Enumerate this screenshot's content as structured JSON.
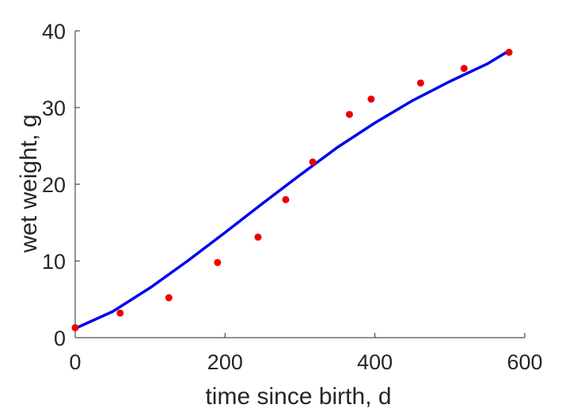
{
  "chart_data": {
    "type": "scatter",
    "title": "",
    "xlabel": "time since birth, d",
    "ylabel": "wet weight, g",
    "xlim": [
      0,
      600
    ],
    "ylim": [
      0,
      40
    ],
    "xticks": [
      0,
      200,
      400,
      600
    ],
    "yticks": [
      0,
      10,
      20,
      30,
      40
    ],
    "grid": false,
    "colors": {
      "fit": "#0000ee",
      "data": "#ee0000",
      "axis": "#262626"
    },
    "series": [
      {
        "type": "scatter",
        "x": [
          0,
          60,
          125,
          190,
          244,
          281,
          317,
          366,
          395,
          461,
          519,
          579
        ],
        "y": [
          1.3,
          3.2,
          5.2,
          9.8,
          13.1,
          18.0,
          22.9,
          29.1,
          31.1,
          33.2,
          35.1,
          37.2
        ]
      },
      {
        "type": "line",
        "x": [
          0,
          50,
          100,
          150,
          200,
          250,
          300,
          350,
          400,
          450,
          500,
          550,
          579
        ],
        "y": [
          1.2,
          3.4,
          6.5,
          10.0,
          13.7,
          17.5,
          21.2,
          24.8,
          28.0,
          30.9,
          33.4,
          35.7,
          37.4
        ]
      }
    ]
  }
}
